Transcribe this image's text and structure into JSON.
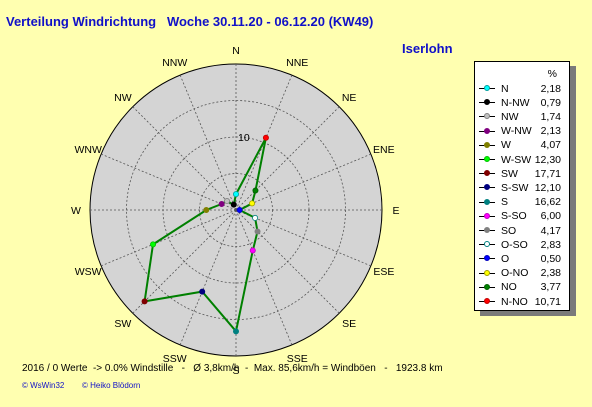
{
  "header": {
    "title": "Verteilung Windrichtung   Woche 30.11.20 - 06.12.20 (KW49)",
    "station": "Iserlohn"
  },
  "chart_data": {
    "type": "radar",
    "directions": [
      "N",
      "NNE",
      "NE",
      "ENE",
      "E",
      "ESE",
      "SE",
      "SSE",
      "S",
      "SSW",
      "SW",
      "WSW",
      "W",
      "WNW",
      "NW",
      "NNW"
    ],
    "ring_label": "10",
    "ring_values": [
      5,
      10,
      15,
      20
    ],
    "rmax": 20,
    "series_color": "#008000",
    "values_by_direction": {
      "N": 2.18,
      "NNE": 10.71,
      "NE": 3.77,
      "ENE": 2.38,
      "E": 0.5,
      "ESE": 2.83,
      "SE": 4.17,
      "SSE": 6.0,
      "S": 16.62,
      "SSW": 12.1,
      "SW": 17.71,
      "WSW": 12.3,
      "W": 4.07,
      "WNW": 2.13,
      "NW": 1.74,
      "NNW": 0.79
    }
  },
  "legend": {
    "unit": "%",
    "items": [
      {
        "label": "N",
        "value": "2,18",
        "color": "#00a0a0",
        "fill": "#00ffff"
      },
      {
        "label": "N-NW",
        "value": "0,79",
        "color": "#000000",
        "fill": "#000000"
      },
      {
        "label": "NW",
        "value": "1,74",
        "color": "#808080",
        "fill": "#c0c0c0"
      },
      {
        "label": "W-NW",
        "value": "2,13",
        "color": "#800080",
        "fill": "#800080"
      },
      {
        "label": "W",
        "value": "4,07",
        "color": "#808000",
        "fill": "#808000"
      },
      {
        "label": "W-SW",
        "value": "12,30",
        "color": "#00c000",
        "fill": "#00ff00"
      },
      {
        "label": "SW",
        "value": "17,71",
        "color": "#800000",
        "fill": "#800000"
      },
      {
        "label": "S-SW",
        "value": "12,10",
        "color": "#000080",
        "fill": "#000080"
      },
      {
        "label": "S",
        "value": "16,62",
        "color": "#008080",
        "fill": "#008080"
      },
      {
        "label": "S-SO",
        "value": "6,00",
        "color": "#c000c0",
        "fill": "#ff00ff"
      },
      {
        "label": "SO",
        "value": "4,17",
        "color": "#808080",
        "fill": "#808080"
      },
      {
        "label": "O-SO",
        "value": "2,83",
        "color": "#008080",
        "fill": "#ffffff"
      },
      {
        "label": "O",
        "value": "0,50",
        "color": "#0000c0",
        "fill": "#0000ff"
      },
      {
        "label": "O-NO",
        "value": "2,38",
        "color": "#a0a000",
        "fill": "#ffff00"
      },
      {
        "label": "NO",
        "value": "3,77",
        "color": "#006000",
        "fill": "#008000"
      },
      {
        "label": "N-NO",
        "value": "10,71",
        "color": "#c00000",
        "fill": "#ff0000"
      }
    ]
  },
  "footer": {
    "stats": "2016 / 0 Werte  -> 0.0% Windstille   -   Ø 3,8km/h  -  Max. 85,6km/h = Windböen   -   1923.8 km",
    "copyright_left": "© WsWin32",
    "copyright_right": "© Heiko Blödorn"
  }
}
